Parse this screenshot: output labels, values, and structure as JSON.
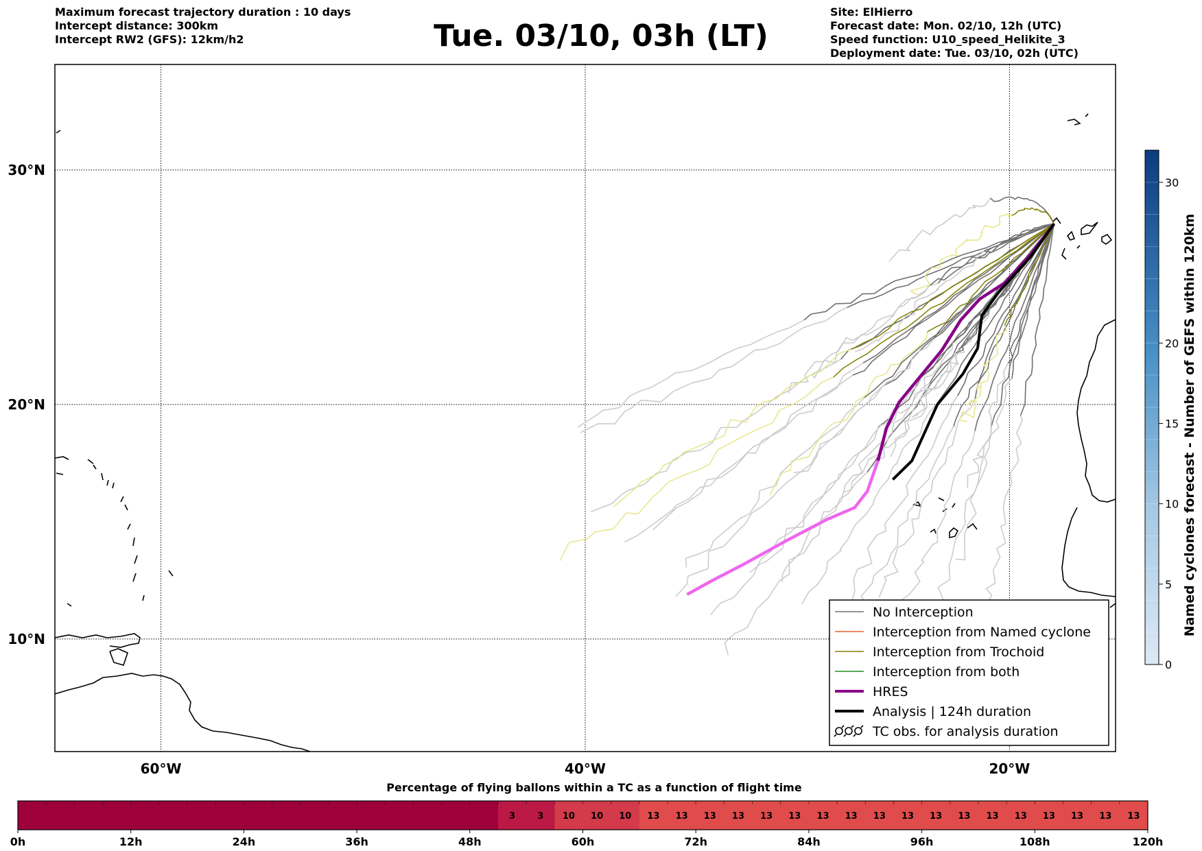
{
  "header_left": [
    "Maximum forecast trajectory duration : 10 days",
    "Intercept distance: 300km",
    "Intercept RW2 (GFS):  12km/h2"
  ],
  "header_right": [
    "Site: ElHierro",
    "Forecast date: Mon. 02/10, 12h (UTC)",
    "Speed function: U10_speed_Helikite_3",
    "Deployment date: Tue. 03/10, 02h (UTC)"
  ],
  "title": "Tue. 03/10, 03h (LT)",
  "map": {
    "lon_ticks": [
      {
        "lon": -60,
        "label": "60°W"
      },
      {
        "lon": -40,
        "label": "40°W"
      },
      {
        "lon": -20,
        "label": "20°W"
      }
    ],
    "lat_ticks": [
      {
        "lat": 30,
        "label": "30°N"
      },
      {
        "lat": 20,
        "label": "20°N"
      },
      {
        "lat": 10,
        "label": "10°N"
      }
    ],
    "launch_site": [
      -17.9,
      27.7
    ],
    "colors": {
      "no_interception": "#707070",
      "no_interception_late": "#cccccc",
      "named_cyclone": "#e8602c",
      "trochoid": "#808000",
      "trochoid_late": "#e6e68a",
      "both": "#228b22",
      "hres": "#880088",
      "hres_late": "#ee66ee",
      "analysis": "#000000"
    }
  },
  "legend": [
    {
      "label": "No Interception",
      "style": "no_interception"
    },
    {
      "label": "Interception from Named cyclone",
      "style": "named_cyclone"
    },
    {
      "label": "Interception from Trochoid",
      "style": "trochoid"
    },
    {
      "label": "Interception from both",
      "style": "both"
    },
    {
      "label": "HRES",
      "style": "hres"
    },
    {
      "label": "Analysis | 124h duration",
      "style": "analysis"
    },
    {
      "label": "TC obs. for analysis duration",
      "style": "tc_obs"
    }
  ],
  "colorbar": {
    "title": "Named cyclones forecast - Number of GEFS within 120km",
    "ticks": [
      "0",
      "5",
      "10",
      "15",
      "20",
      "30"
    ],
    "min": 0,
    "max": 32
  },
  "strip": {
    "title": "Percentage of flying ballons within a TC as a function of flight time",
    "hours": 120,
    "segment_hours": 3,
    "tick_labels": [
      "0h",
      "12h",
      "24h",
      "36h",
      "48h",
      "60h",
      "72h",
      "84h",
      "96h",
      "108h",
      "120h"
    ],
    "values": [
      0,
      0,
      0,
      0,
      0,
      0,
      0,
      0,
      0,
      0,
      0,
      0,
      0,
      0,
      0,
      0,
      0,
      3,
      3,
      10,
      10,
      10,
      13,
      13,
      13,
      13,
      13,
      13,
      13,
      13,
      13,
      13,
      13,
      13,
      13,
      13,
      13,
      13,
      13,
      13
    ]
  }
}
